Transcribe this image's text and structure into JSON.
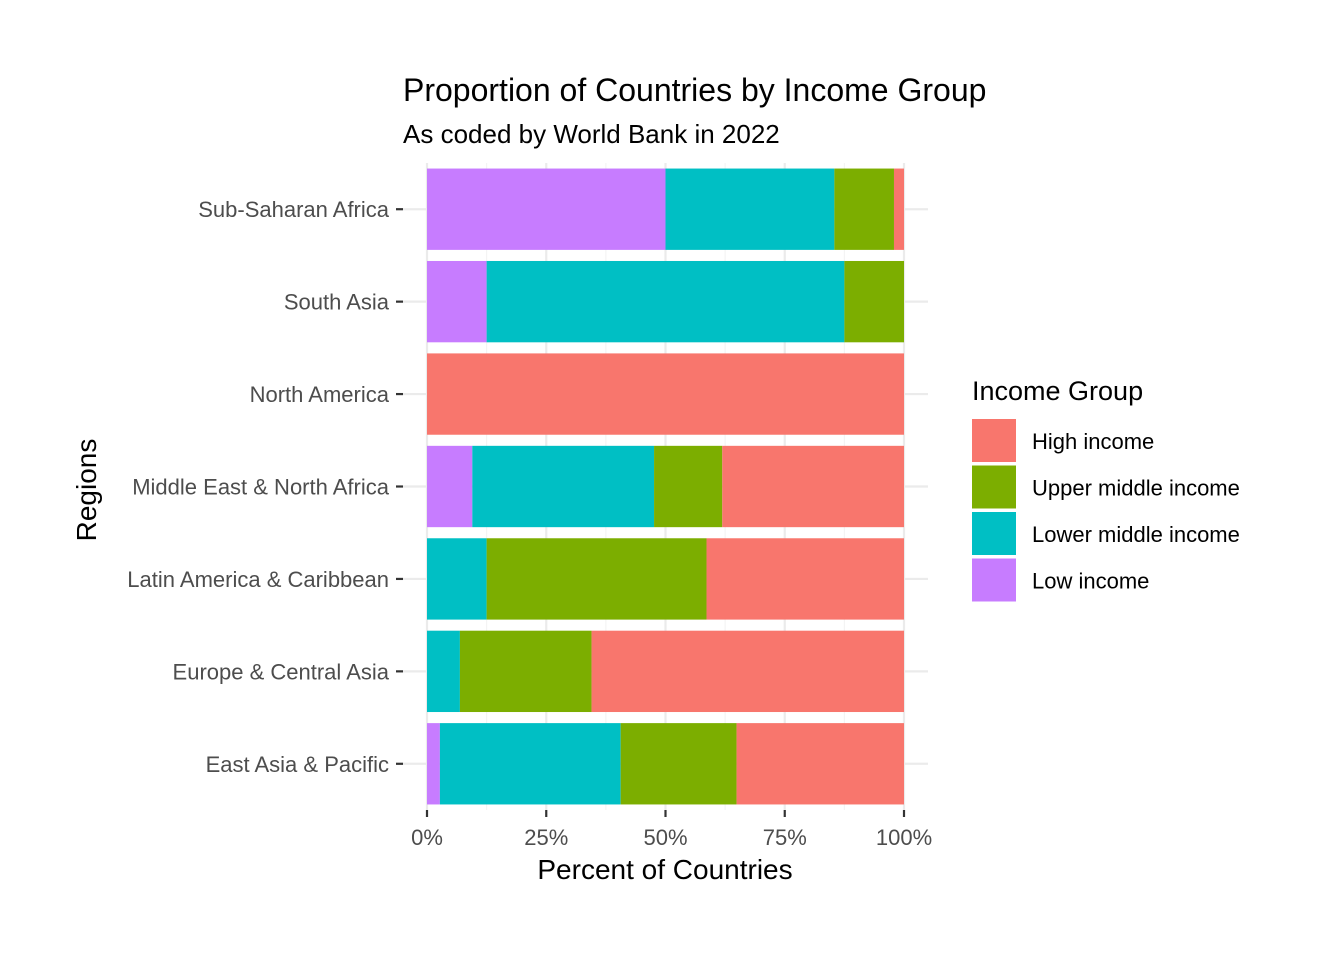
{
  "chart_data": {
    "type": "bar",
    "orientation": "horizontal",
    "stacked": "percent",
    "title": "Proportion of Countries by Income Group",
    "subtitle": "As coded by World Bank in 2022",
    "xlabel": "Percent of Countries",
    "ylabel": "Regions",
    "xlim": [
      0,
      100
    ],
    "x_ticks": [
      "0%",
      "25%",
      "50%",
      "75%",
      "100%"
    ],
    "x_tick_values": [
      0,
      25,
      50,
      75,
      100
    ],
    "categories": [
      "East Asia & Pacific",
      "Europe & Central Asia",
      "Latin America & Caribbean",
      "Middle East & North Africa",
      "North America",
      "South Asia",
      "Sub-Saharan Africa"
    ],
    "series": [
      {
        "name": "Low income",
        "color": "#C77CFF",
        "values": [
          2.7,
          0,
          0,
          9.5,
          0,
          12.5,
          50.0
        ]
      },
      {
        "name": "Lower middle income",
        "color": "#00BFC4",
        "values": [
          37.9,
          6.9,
          12.5,
          38.1,
          0,
          75.0,
          35.4
        ]
      },
      {
        "name": "Upper middle income",
        "color": "#7CAE00",
        "values": [
          24.3,
          27.6,
          46.1,
          14.3,
          0,
          12.5,
          12.5
        ]
      },
      {
        "name": "High income",
        "color": "#F8766D",
        "values": [
          35.1,
          65.5,
          41.4,
          38.1,
          100,
          0,
          2.1
        ]
      }
    ],
    "legend": {
      "title": "Income Group",
      "position": "right",
      "order": [
        "High income",
        "Upper middle income",
        "Lower middle income",
        "Low income"
      ]
    },
    "grid": true
  }
}
